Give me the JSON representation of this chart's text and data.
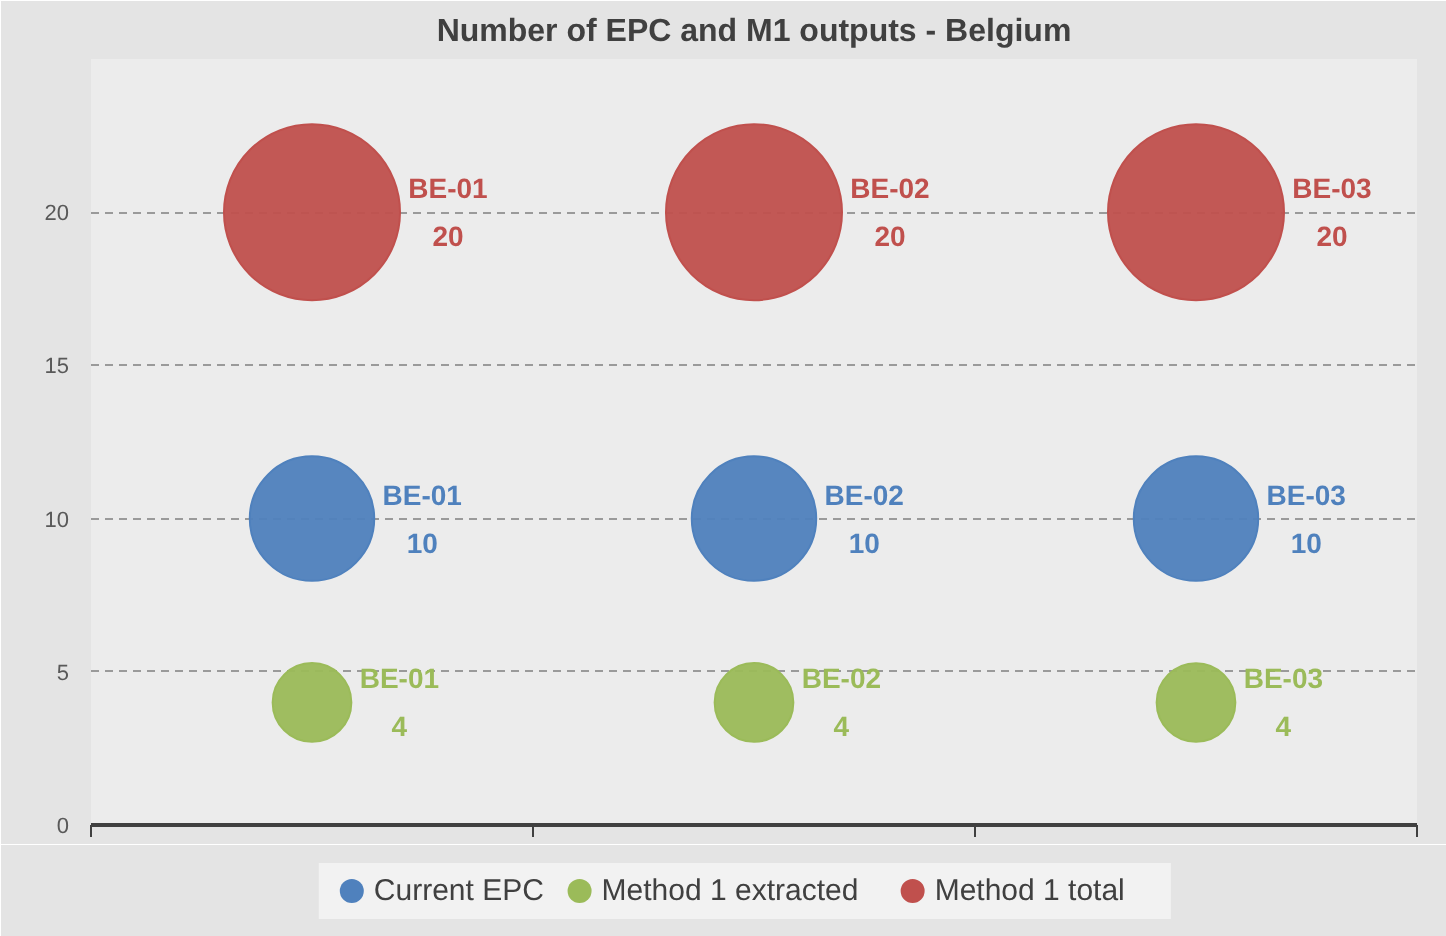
{
  "chart_data": {
    "type": "bubble",
    "title": "Number of EPC and M1 outputs - Belgium",
    "categories": [
      null,
      null,
      null
    ],
    "series": [
      {
        "name": "Current EPC",
        "color": "#4f81bd",
        "values": [
          10,
          10,
          10
        ],
        "sizes": [
          0.5,
          0.5,
          0.5
        ],
        "value_labels": [
          "BE-01\n10",
          "BE-02\n10",
          "BE-03\n10"
        ]
      },
      {
        "name": "Method 1 extracted",
        "color": "#9bbb59",
        "values": [
          4,
          4,
          4
        ],
        "sizes": [
          0.2,
          0.2,
          0.2
        ],
        "value_labels": [
          "BE-01\n4",
          "BE-02\n4",
          "BE-03\n4"
        ]
      },
      {
        "name": "Method 1 total",
        "color": "#c0504d",
        "values": [
          20,
          20,
          20
        ],
        "sizes": [
          1,
          1,
          1
        ],
        "value_labels": [
          "BE-01\n20",
          "BE-02\n20",
          "BE-03\n20"
        ]
      }
    ],
    "ylim": [
      0,
      25
    ],
    "yticks": [
      0,
      5,
      10,
      15,
      20
    ],
    "grid": "y",
    "legend": "bottom",
    "tick_labels": "y"
  }
}
